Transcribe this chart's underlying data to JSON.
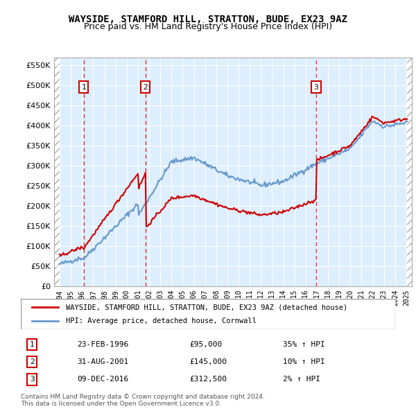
{
  "title": "WAYSIDE, STAMFORD HILL, STRATTON, BUDE, EX23 9AZ",
  "subtitle": "Price paid vs. HM Land Registry's House Price Index (HPI)",
  "legend_line1": "WAYSIDE, STAMFORD HILL, STRATTON, BUDE, EX23 9AZ (detached house)",
  "legend_line2": "HPI: Average price, detached house, Cornwall",
  "footer1": "Contains HM Land Registry data © Crown copyright and database right 2024.",
  "footer2": "This data is licensed under the Open Government Licence v3.0.",
  "transactions": [
    {
      "num": 1,
      "date": "23-FEB-1996",
      "price": 95000,
      "hpi_pct": "35% ↑ HPI",
      "year": 1996.15
    },
    {
      "num": 2,
      "date": "31-AUG-2001",
      "price": 145000,
      "hpi_pct": "10% ↑ HPI",
      "year": 2001.67
    },
    {
      "num": 3,
      "date": "09-DEC-2016",
      "price": 312500,
      "hpi_pct": "2% ↑ HPI",
      "year": 2016.94
    }
  ],
  "hpi_color": "#6699cc",
  "price_color": "#cc0000",
  "dashed_line_color": "#cc0000",
  "marker_box_color": "#cc0000",
  "background_plot": "#ddeeff",
  "hatch_color": "#cccccc",
  "ylim": [
    0,
    570000
  ],
  "yticks": [
    0,
    50000,
    100000,
    150000,
    200000,
    250000,
    300000,
    350000,
    400000,
    450000,
    500000,
    550000
  ],
  "xlim_start": 1993.5,
  "xlim_end": 2025.5
}
